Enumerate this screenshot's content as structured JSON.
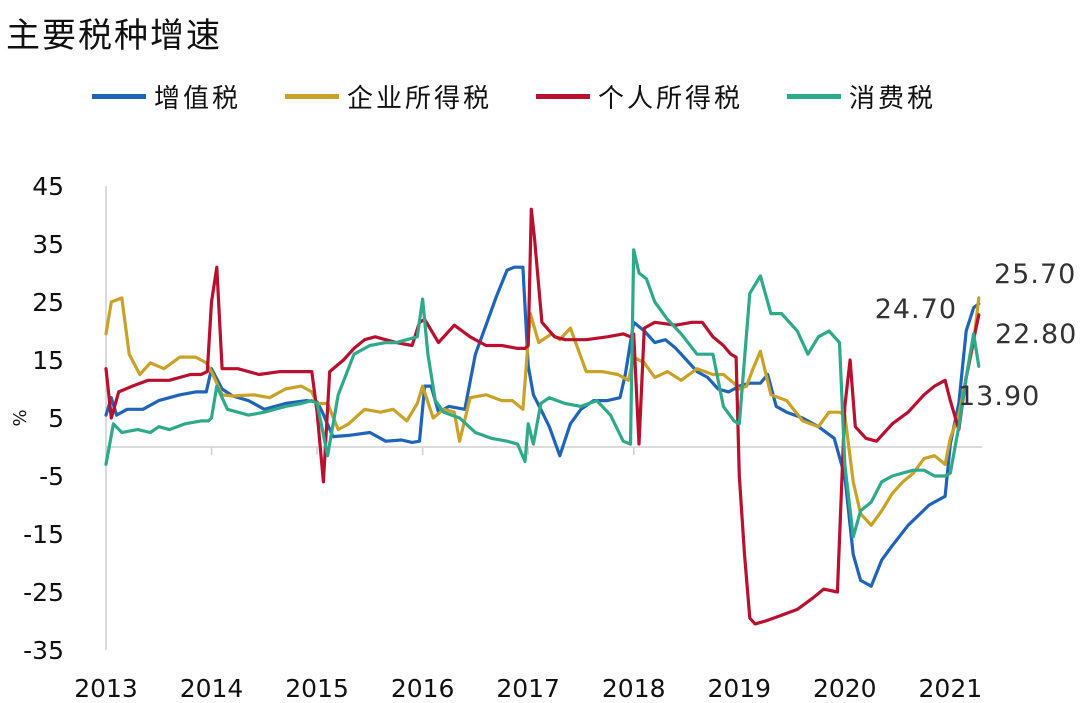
{
  "title": "主要税种增速",
  "legend": [
    {
      "name": "增值税",
      "color": "#1f64b9"
    },
    {
      "name": "企业所得税",
      "color": "#c9a227"
    },
    {
      "name": "个人所得税",
      "color": "#b8102e"
    },
    {
      "name": "消费税",
      "color": "#2eaa8a"
    }
  ],
  "chart_data": {
    "type": "line",
    "title": "主要税种增速",
    "ylabel": "%",
    "xlabel": "",
    "ylim": [
      -35,
      45
    ],
    "yticks": [
      45,
      35,
      25,
      15,
      5,
      -5,
      -15,
      -25,
      -35
    ],
    "xlim": [
      2013,
      2021.3
    ],
    "xticks": [
      2013,
      2014,
      2015,
      2016,
      2017,
      2018,
      2019,
      2020,
      2021
    ],
    "grid": false,
    "legend_position": "top",
    "end_labels": [
      {
        "text": "25.70",
        "series": "企业所得税"
      },
      {
        "text": "24.70",
        "series": "增值税"
      },
      {
        "text": "22.80",
        "series": "个人所得税"
      },
      {
        "text": "13.90",
        "series": "消费税"
      }
    ],
    "series": [
      {
        "name": "增值税",
        "color": "#1f64b9",
        "x": [
          2013,
          2013.05,
          2013.1,
          2013.2,
          2013.35,
          2013.5,
          2013.7,
          2013.85,
          2013.95,
          2014,
          2014.1,
          2014.2,
          2014.35,
          2014.5,
          2014.7,
          2014.9,
          2015,
          2015.05,
          2015.15,
          2015.3,
          2015.5,
          2015.65,
          2015.8,
          2015.9,
          2015.97,
          2016.02,
          2016.08,
          2016.15,
          2016.25,
          2016.4,
          2016.5,
          2016.6,
          2016.7,
          2016.8,
          2016.87,
          2016.95,
          2017,
          2017.05,
          2017.12,
          2017.2,
          2017.3,
          2017.4,
          2017.5,
          2017.62,
          2017.75,
          2017.87,
          2017.92,
          2018,
          2018.1,
          2018.2,
          2018.3,
          2018.4,
          2018.5,
          2018.6,
          2018.7,
          2018.8,
          2018.9,
          2019,
          2019.1,
          2019.2,
          2019.27,
          2019.35,
          2019.45,
          2019.6,
          2019.75,
          2019.9,
          2020,
          2020.08,
          2020.15,
          2020.25,
          2020.35,
          2020.45,
          2020.6,
          2020.8,
          2020.95,
          2021,
          2021.08,
          2021.15,
          2021.22,
          2021.27
        ],
        "values": [
          5.5,
          8.5,
          5.5,
          6.5,
          6.5,
          8.0,
          9.0,
          9.5,
          9.5,
          13.5,
          10.0,
          8.8,
          8.0,
          6.5,
          7.5,
          8.0,
          7.8,
          6.0,
          1.8,
          2.0,
          2.5,
          1.0,
          1.2,
          0.8,
          1.0,
          10.5,
          10.5,
          6.0,
          7.0,
          6.5,
          16.0,
          21.0,
          26.0,
          30.5,
          31.0,
          31.0,
          14.0,
          9.0,
          6.5,
          3.5,
          -1.5,
          4.0,
          6.5,
          8.0,
          8.0,
          8.5,
          12.5,
          21.5,
          20.0,
          18.0,
          18.5,
          17.0,
          15.0,
          13.0,
          12.0,
          10.0,
          9.5,
          10.5,
          11.0,
          11.0,
          12.5,
          7.0,
          6.0,
          5.0,
          3.5,
          1.5,
          -5.0,
          -18.5,
          -23.0,
          -24.0,
          -19.5,
          -17.0,
          -13.5,
          -10.0,
          -8.5,
          0.5,
          7.5,
          20.0,
          24.0,
          24.7
        ]
      },
      {
        "name": "企业所得税",
        "color": "#c9a227",
        "x": [
          2013,
          2013.05,
          2013.15,
          2013.22,
          2013.32,
          2013.42,
          2013.55,
          2013.7,
          2013.85,
          2013.95,
          2014,
          2014.1,
          2014.2,
          2014.4,
          2014.55,
          2014.7,
          2014.85,
          2014.95,
          2015,
          2015.1,
          2015.2,
          2015.3,
          2015.45,
          2015.6,
          2015.72,
          2015.85,
          2015.95,
          2016,
          2016.1,
          2016.2,
          2016.3,
          2016.35,
          2016.45,
          2016.6,
          2016.75,
          2016.85,
          2016.95,
          2017.02,
          2017.1,
          2017.22,
          2017.3,
          2017.4,
          2017.55,
          2017.7,
          2017.85,
          2017.95,
          2018,
          2018.1,
          2018.2,
          2018.32,
          2018.45,
          2018.6,
          2018.75,
          2018.85,
          2018.95,
          2019,
          2019.07,
          2019.13,
          2019.2,
          2019.3,
          2019.45,
          2019.6,
          2019.75,
          2019.85,
          2019.95,
          2020,
          2020.08,
          2020.15,
          2020.25,
          2020.35,
          2020.45,
          2020.55,
          2020.65,
          2020.75,
          2020.85,
          2020.95,
          2021,
          2021.08,
          2021.15,
          2021.22,
          2021.27
        ],
        "values": [
          19.5,
          25.0,
          25.7,
          16.0,
          12.5,
          14.5,
          13.5,
          15.5,
          15.5,
          14.5,
          13.0,
          9.0,
          8.8,
          9.0,
          8.5,
          10.0,
          10.5,
          9.5,
          7.5,
          7.5,
          3.0,
          4.0,
          6.5,
          6.0,
          6.5,
          4.5,
          7.5,
          10.5,
          5.0,
          6.5,
          6.0,
          1.0,
          8.5,
          9.0,
          8.0,
          8.0,
          6.5,
          23.0,
          18.0,
          19.5,
          18.5,
          20.5,
          13.0,
          13.0,
          12.5,
          11.5,
          15.5,
          14.5,
          12.0,
          13.0,
          11.5,
          13.5,
          12.5,
          12.5,
          11.0,
          10.0,
          10.5,
          13.5,
          16.5,
          9.0,
          8.0,
          4.5,
          3.5,
          6.0,
          6.0,
          5.5,
          -6.0,
          -11.5,
          -13.5,
          -11.0,
          -8.0,
          -6.0,
          -4.5,
          -2.0,
          -1.5,
          -3.0,
          1.5,
          5.5,
          12.0,
          18.0,
          25.7
        ]
      },
      {
        "name": "个人所得税",
        "color": "#b8102e",
        "x": [
          2013,
          2013.05,
          2013.12,
          2013.25,
          2013.4,
          2013.6,
          2013.8,
          2013.9,
          2013.96,
          2014,
          2014.05,
          2014.1,
          2014.25,
          2014.45,
          2014.65,
          2014.85,
          2014.95,
          2015,
          2015.06,
          2015.12,
          2015.25,
          2015.35,
          2015.45,
          2015.55,
          2015.65,
          2015.75,
          2015.9,
          2015.97,
          2016.02,
          2016.15,
          2016.3,
          2016.45,
          2016.6,
          2016.75,
          2016.9,
          2016.97,
          2017,
          2017.03,
          2017.06,
          2017.13,
          2017.25,
          2017.35,
          2017.55,
          2017.75,
          2017.9,
          2017.97,
          2018,
          2018.05,
          2018.1,
          2018.2,
          2018.4,
          2018.55,
          2018.65,
          2018.75,
          2018.85,
          2018.92,
          2018.97,
          2019,
          2019.05,
          2019.1,
          2019.15,
          2019.25,
          2019.4,
          2019.55,
          2019.7,
          2019.8,
          2019.93,
          2020,
          2020.05,
          2020.1,
          2020.2,
          2020.3,
          2020.45,
          2020.6,
          2020.75,
          2020.85,
          2020.95,
          2021,
          2021.08,
          2021.15,
          2021.22,
          2021.27
        ],
        "values": [
          13.5,
          5.0,
          9.5,
          10.5,
          11.5,
          11.5,
          12.5,
          12.5,
          13.0,
          25.0,
          31.0,
          13.5,
          13.5,
          12.5,
          13.0,
          13.0,
          13.0,
          6.0,
          -6.0,
          13.0,
          15.0,
          17.0,
          18.5,
          19.0,
          18.5,
          18.0,
          17.5,
          21.5,
          22.0,
          18.0,
          21.0,
          19.0,
          17.5,
          17.5,
          17.0,
          17.0,
          17.5,
          41.0,
          36.0,
          21.5,
          19.0,
          18.5,
          18.5,
          19.0,
          19.5,
          19.0,
          19.5,
          0.5,
          20.5,
          21.5,
          21.0,
          21.5,
          21.5,
          19.0,
          17.5,
          16.0,
          15.5,
          -5.0,
          -18.5,
          -29.5,
          -30.5,
          -30.0,
          -29.0,
          -28.0,
          -26.0,
          -24.5,
          -25.0,
          7.0,
          15.0,
          3.5,
          1.5,
          1.0,
          4.0,
          6.0,
          9.0,
          10.5,
          11.5,
          8.0,
          3.0,
          12.0,
          18.5,
          22.8
        ]
      },
      {
        "name": "消费税",
        "color": "#2eaa8a",
        "x": [
          2013,
          2013.07,
          2013.15,
          2013.3,
          2013.42,
          2013.5,
          2013.6,
          2013.75,
          2013.9,
          2013.97,
          2014,
          2014.05,
          2014.15,
          2014.35,
          2014.5,
          2014.7,
          2014.85,
          2014.95,
          2015,
          2015.1,
          2015.2,
          2015.35,
          2015.5,
          2015.65,
          2015.75,
          2015.85,
          2015.95,
          2016,
          2016.05,
          2016.12,
          2016.2,
          2016.35,
          2016.5,
          2016.65,
          2016.8,
          2016.9,
          2016.97,
          2017,
          2017.05,
          2017.12,
          2017.2,
          2017.35,
          2017.5,
          2017.65,
          2017.78,
          2017.9,
          2017.97,
          2018,
          2018.05,
          2018.12,
          2018.2,
          2018.32,
          2018.45,
          2018.6,
          2018.75,
          2018.85,
          2018.95,
          2019,
          2019.1,
          2019.2,
          2019.3,
          2019.4,
          2019.55,
          2019.65,
          2019.75,
          2019.85,
          2019.95,
          2020,
          2020.08,
          2020.15,
          2020.25,
          2020.35,
          2020.45,
          2020.55,
          2020.65,
          2020.75,
          2020.85,
          2020.95,
          2021,
          2021.08,
          2021.15,
          2021.22,
          2021.27
        ],
        "values": [
          -3.0,
          4.0,
          2.5,
          3.0,
          2.5,
          3.5,
          3.0,
          4.0,
          4.5,
          4.5,
          5.0,
          10.5,
          6.5,
          5.5,
          6.0,
          7.0,
          7.5,
          8.0,
          7.5,
          -1.5,
          9.0,
          16.0,
          17.5,
          18.0,
          18.0,
          18.5,
          19.0,
          25.5,
          16.0,
          8.0,
          6.0,
          5.0,
          2.5,
          1.5,
          1.0,
          0.5,
          -2.5,
          4.0,
          0.5,
          7.5,
          8.5,
          7.5,
          7.0,
          8.0,
          5.5,
          1.0,
          0.5,
          34.0,
          30.0,
          29.0,
          25.0,
          22.0,
          19.5,
          16.0,
          16.0,
          7.0,
          4.5,
          4.0,
          26.5,
          29.5,
          23.0,
          23.0,
          20.0,
          16.0,
          19.0,
          20.0,
          18.0,
          -3.0,
          -15.5,
          -11.0,
          -9.5,
          -6.0,
          -5.0,
          -4.5,
          -4.0,
          -4.0,
          -5.0,
          -5.0,
          -4.5,
          3.5,
          12.0,
          19.5,
          13.9
        ]
      }
    ]
  }
}
